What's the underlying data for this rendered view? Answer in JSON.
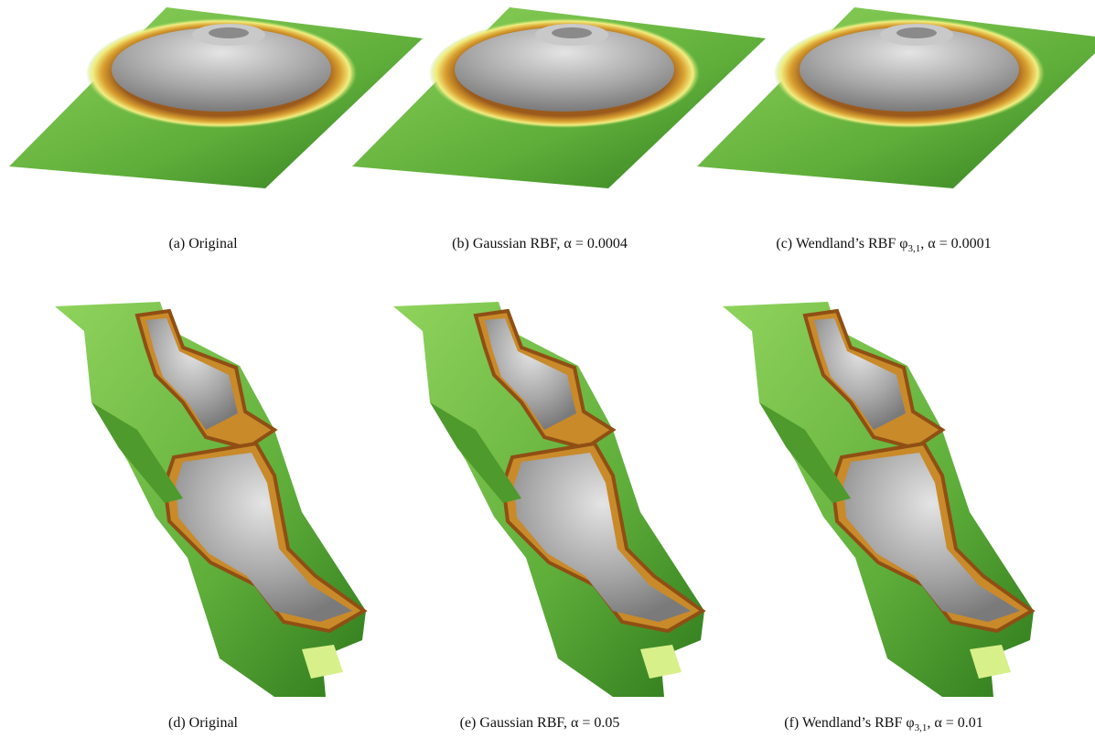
{
  "panels": [
    {
      "caption": "(a) Original"
    },
    {
      "caption": "(b) Gaussian RBF, α = 0.0004"
    },
    {
      "caption": "(c) Wendland’s RBF φ",
      "subscript": "3,1",
      "caption_end": ", α = 0.0001"
    },
    {
      "caption": "(d) Original"
    },
    {
      "caption": "(e) Gaussian RBF, α = 0.05"
    },
    {
      "caption": "(f) Wendland’s RBF φ",
      "subscript": "3,1",
      "caption_end": ", α = 0.01"
    }
  ]
}
